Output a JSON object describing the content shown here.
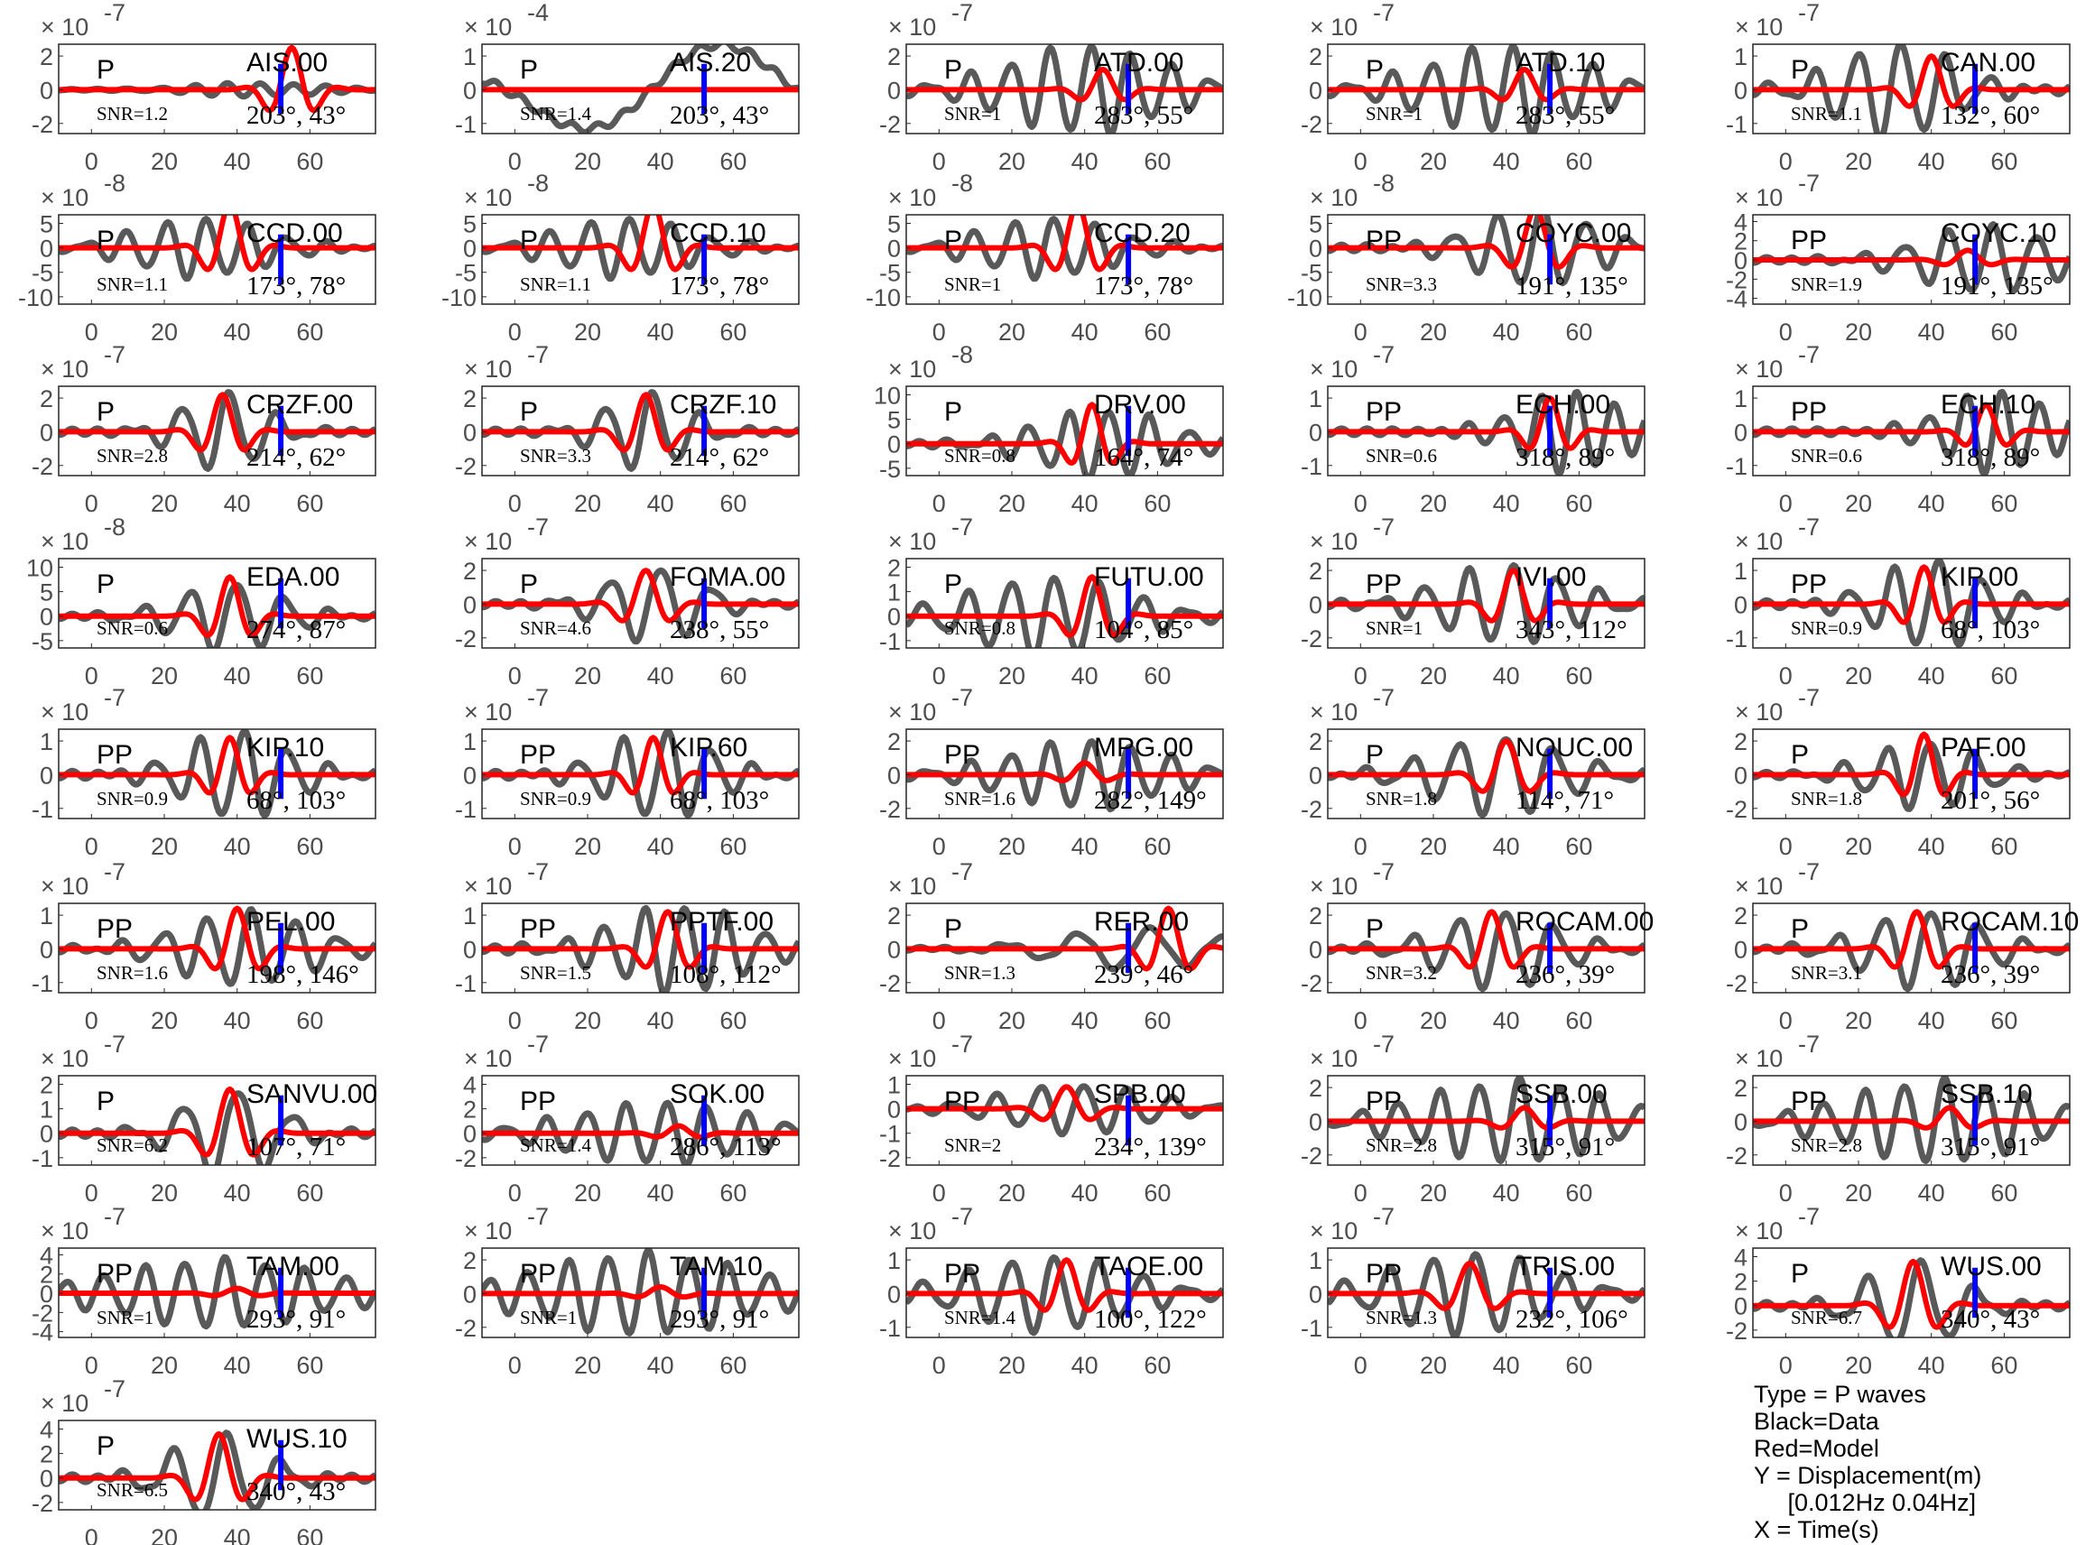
{
  "chart_data": {
    "type": "line",
    "xlabel": "Time(s)",
    "ylabel": "Displacement(m)",
    "xlim": [
      -9,
      78
    ],
    "xticks": [
      0,
      20,
      40,
      60
    ],
    "marker_time": 52,
    "colors": {
      "data": "#595959",
      "model": "#ff0000",
      "marker": "#0000ff",
      "axis": "#262626"
    },
    "legend": [
      "Type = P waves",
      "Black=Data",
      "Red=Model",
      "Y = Displacement(m)",
      "     [0.012Hz 0.04Hz]",
      "X = Time(s)"
    ],
    "plots": [
      {
        "station": "AIS.00",
        "phase": "P",
        "snr": "SNR=1.2",
        "angles": "203°, 43°",
        "exp": "-7",
        "yticks": [
          -2,
          0,
          2
        ],
        "model": [
          55,
          2.5,
          14
        ],
        "data": [
          45,
          0.4,
          9,
          25
        ]
      },
      {
        "station": "AIS.20",
        "phase": "P",
        "snr": "SNR=1.4",
        "angles": "203°, 43°",
        "exp": "-4",
        "yticks": [
          -1,
          0,
          1
        ],
        "model": [
          50,
          0.0,
          14
        ],
        "data": [
          45,
          1.4,
          80,
          60
        ]
      },
      {
        "station": "ATD.00",
        "phase": "P",
        "snr": "SNR=1",
        "angles": "283°, 55°",
        "exp": "-7",
        "yticks": [
          -2,
          0,
          2
        ],
        "model": [
          45,
          1.2,
          14
        ],
        "data": [
          40,
          2.6,
          11,
          30
        ]
      },
      {
        "station": "ATD.10",
        "phase": "P",
        "snr": "SNR=1",
        "angles": "283°, 55°",
        "exp": "-7",
        "yticks": [
          -2,
          0,
          2
        ],
        "model": [
          45,
          1.2,
          14
        ],
        "data": [
          40,
          2.6,
          11,
          30
        ]
      },
      {
        "station": "CAN.00",
        "phase": "P",
        "snr": "SNR=1.1",
        "angles": "132°, 60°",
        "exp": "-7",
        "yticks": [
          -1,
          0,
          1
        ],
        "model": [
          40,
          1.0,
          14
        ],
        "data": [
          30,
          1.4,
          12,
          22
        ]
      },
      {
        "station": "CCD.00",
        "phase": "P",
        "snr": "SNR=1.1",
        "angles": "173°, 78°",
        "exp": "-8",
        "yticks": [
          -10,
          -5,
          0,
          5
        ],
        "model": [
          38,
          9,
          14
        ],
        "data": [
          30,
          6,
          11,
          25
        ]
      },
      {
        "station": "CCD.10",
        "phase": "P",
        "snr": "SNR=1.1",
        "angles": "173°, 78°",
        "exp": "-8",
        "yticks": [
          -10,
          -5,
          0,
          5
        ],
        "model": [
          38,
          9,
          14
        ],
        "data": [
          30,
          6,
          11,
          25
        ]
      },
      {
        "station": "CCD.20",
        "phase": "P",
        "snr": "SNR=1",
        "angles": "173°, 78°",
        "exp": "-8",
        "yticks": [
          -10,
          -5,
          0,
          5
        ],
        "model": [
          38,
          9,
          14
        ],
        "data": [
          30,
          6,
          11,
          25
        ]
      },
      {
        "station": "COYC.00",
        "phase": "PP",
        "snr": "SNR=3.3",
        "angles": "191°, 135°",
        "exp": "-8",
        "yticks": [
          -10,
          -5,
          0,
          5
        ],
        "model": [
          48,
          8,
          15
        ],
        "data": [
          48,
          8,
          12,
          22
        ]
      },
      {
        "station": "COYC.10",
        "phase": "PP",
        "snr": "SNR=1.9",
        "angles": "191°, 135°",
        "exp": "-7",
        "yticks": [
          -4,
          -2,
          0,
          2,
          4
        ],
        "model": [
          50,
          1,
          15
        ],
        "data": [
          55,
          3.5,
          12,
          25
        ]
      },
      {
        "station": "CRZF.00",
        "phase": "P",
        "snr": "SNR=2.8",
        "angles": "214°, 62°",
        "exp": "-7",
        "yticks": [
          -2,
          0,
          2
        ],
        "model": [
          36,
          2.2,
          14
        ],
        "data": [
          36,
          2.3,
          13,
          16
        ]
      },
      {
        "station": "CRZF.10",
        "phase": "P",
        "snr": "SNR=3.3",
        "angles": "214°, 62°",
        "exp": "-7",
        "yticks": [
          -2,
          0,
          2
        ],
        "model": [
          36,
          2.2,
          14
        ],
        "data": [
          36,
          2.3,
          13,
          16
        ]
      },
      {
        "station": "DRV.00",
        "phase": "P",
        "snr": "SNR=0.8",
        "angles": "164°, 74°",
        "exp": "-8",
        "yticks": [
          -5,
          0,
          5,
          10
        ],
        "model": [
          42,
          8,
          13
        ],
        "data": [
          45,
          7,
          11,
          25
        ]
      },
      {
        "station": "ECH.00",
        "phase": "PP",
        "snr": "SNR=0.6",
        "angles": "318°, 89°",
        "exp": "-7",
        "yticks": [
          -1,
          0,
          1
        ],
        "model": [
          52,
          1,
          13
        ],
        "data": [
          58,
          1.2,
          10,
          20
        ]
      },
      {
        "station": "ECH.10",
        "phase": "PP",
        "snr": "SNR=0.6",
        "angles": "318°, 89°",
        "exp": "-7",
        "yticks": [
          -1,
          0,
          1
        ],
        "model": [
          55,
          0.8,
          13
        ],
        "data": [
          58,
          1.2,
          10,
          20
        ]
      },
      {
        "station": "EDA.00",
        "phase": "P",
        "snr": "SNR=0.6",
        "angles": "274°, 87°",
        "exp": "-8",
        "yticks": [
          -5,
          0,
          5,
          10
        ],
        "model": [
          38,
          8,
          14
        ],
        "data": [
          38,
          7,
          13,
          20
        ]
      },
      {
        "station": "FOMA.00",
        "phase": "P",
        "snr": "SNR=4.6",
        "angles": "238°, 55°",
        "exp": "-7",
        "yticks": [
          -2,
          0,
          2
        ],
        "model": [
          36,
          2,
          15
        ],
        "data": [
          38,
          2.2,
          14,
          18
        ]
      },
      {
        "station": "FUTU.00",
        "phase": "P",
        "snr": "SNR=0.8",
        "angles": "104°, 85°",
        "exp": "-7",
        "yticks": [
          -1,
          0,
          1,
          2
        ],
        "model": [
          42,
          1.6,
          14
        ],
        "data": [
          30,
          1.6,
          12,
          30
        ]
      },
      {
        "station": "IVI.00",
        "phase": "PP",
        "snr": "SNR=1",
        "angles": "343°, 112°",
        "exp": "-7",
        "yticks": [
          -2,
          0,
          2
        ],
        "model": [
          42,
          2,
          14
        ],
        "data": [
          40,
          2.3,
          12,
          25
        ]
      },
      {
        "station": "KIP.00",
        "phase": "PP",
        "snr": "SNR=0.9",
        "angles": "68°, 103°",
        "exp": "-7",
        "yticks": [
          -1,
          0,
          1
        ],
        "model": [
          38,
          1.1,
          13
        ],
        "data": [
          40,
          1.3,
          12,
          20
        ]
      },
      {
        "station": "KIP.10",
        "phase": "PP",
        "snr": "SNR=0.9",
        "angles": "68°, 103°",
        "exp": "-7",
        "yticks": [
          -1,
          0,
          1
        ],
        "model": [
          38,
          1.1,
          13
        ],
        "data": [
          40,
          1.3,
          12,
          20
        ]
      },
      {
        "station": "KIP.60",
        "phase": "PP",
        "snr": "SNR=0.9",
        "angles": "68°, 103°",
        "exp": "-7",
        "yticks": [
          -1,
          0,
          1
        ],
        "model": [
          38,
          1.1,
          13
        ],
        "data": [
          40,
          1.3,
          12,
          20
        ]
      },
      {
        "station": "MPG.00",
        "phase": "PP",
        "snr": "SNR=1.6",
        "angles": "282°, 149°",
        "exp": "-7",
        "yticks": [
          -2,
          0,
          2
        ],
        "model": [
          40,
          0.7,
          14
        ],
        "data": [
          40,
          2,
          11,
          30
        ]
      },
      {
        "station": "NOUC.00",
        "phase": "P",
        "snr": "SNR=1.8",
        "angles": "114°, 71°",
        "exp": "-7",
        "yticks": [
          -2,
          0,
          2
        ],
        "model": [
          40,
          2,
          15
        ],
        "data": [
          38,
          2.3,
          13,
          25
        ]
      },
      {
        "station": "PAF.00",
        "phase": "P",
        "snr": "SNR=1.8",
        "angles": "201°, 56°",
        "exp": "-7",
        "yticks": [
          -2,
          0,
          2
        ],
        "model": [
          38,
          2.4,
          13
        ],
        "data": [
          38,
          2,
          12,
          20
        ]
      },
      {
        "station": "PEL.00",
        "phase": "PP",
        "snr": "SNR=1.6",
        "angles": "198°, 146°",
        "exp": "-7",
        "yticks": [
          -1,
          0,
          1
        ],
        "model": [
          40,
          1.2,
          14
        ],
        "data": [
          42,
          1.1,
          12,
          25
        ]
      },
      {
        "station": "PPTF.00",
        "phase": "PP",
        "snr": "SNR=1.5",
        "angles": "108°, 112°",
        "exp": "-7",
        "yticks": [
          -1,
          0,
          1
        ],
        "model": [
          42,
          1.1,
          14
        ],
        "data": [
          45,
          1.3,
          11,
          25
        ]
      },
      {
        "station": "RER.00",
        "phase": "P",
        "snr": "SNR=1.3",
        "angles": "239°, 46°",
        "exp": "-7",
        "yticks": [
          -2,
          0,
          2
        ],
        "model": [
          63,
          2.4,
          14
        ],
        "data": [
          55,
          1.2,
          20,
          30
        ]
      },
      {
        "station": "ROCAM.00",
        "phase": "P",
        "snr": "SNR=3.2",
        "angles": "236°, 39°",
        "exp": "-7",
        "yticks": [
          -2,
          0,
          2
        ],
        "model": [
          36,
          2.2,
          14
        ],
        "data": [
          38,
          2.3,
          13,
          22
        ]
      },
      {
        "station": "ROCAM.10",
        "phase": "P",
        "snr": "SNR=3.1",
        "angles": "236°, 39°",
        "exp": "-7",
        "yticks": [
          -2,
          0,
          2
        ],
        "model": [
          36,
          2.2,
          14
        ],
        "data": [
          38,
          2.3,
          13,
          22
        ]
      },
      {
        "station": "SANVU.00",
        "phase": "P",
        "snr": "SNR=6.2",
        "angles": "107°, 71°",
        "exp": "-7",
        "yticks": [
          -1,
          0,
          1,
          2
        ],
        "model": [
          38,
          1.8,
          15
        ],
        "data": [
          38,
          1.8,
          15,
          18
        ]
      },
      {
        "station": "SOK.00",
        "phase": "PP",
        "snr": "SNR=1.4",
        "angles": "286°, 113°",
        "exp": "-7",
        "yticks": [
          -2,
          0,
          2,
          4
        ],
        "model": [
          45,
          0.6,
          14
        ],
        "data": [
          40,
          2.5,
          11,
          35
        ]
      },
      {
        "station": "SPB.00",
        "phase": "PP",
        "snr": "SNR=2",
        "angles": "234°, 139°",
        "exp": "-7",
        "yticks": [
          -2,
          -1,
          0,
          1
        ],
        "model": [
          35,
          0.9,
          15
        ],
        "data": [
          38,
          1,
          12,
          28
        ]
      },
      {
        "station": "SSB.00",
        "phase": "PP",
        "snr": "SNR=2.8",
        "angles": "315°, 91°",
        "exp": "-7",
        "yticks": [
          -2,
          0,
          2
        ],
        "model": [
          45,
          0.8,
          15
        ],
        "data": [
          42,
          2.4,
          11,
          35
        ]
      },
      {
        "station": "SSB.10",
        "phase": "PP",
        "snr": "SNR=2.8",
        "angles": "315°, 91°",
        "exp": "-7",
        "yticks": [
          -2,
          0,
          2
        ],
        "model": [
          45,
          0.8,
          15
        ],
        "data": [
          42,
          2.4,
          11,
          35
        ]
      },
      {
        "station": "TAM.00",
        "phase": "PP",
        "snr": "SNR=1",
        "angles": "293°, 91°",
        "exp": "-7",
        "yticks": [
          -4,
          -2,
          0,
          2,
          4
        ],
        "model": [
          40,
          0.5,
          15
        ],
        "data": [
          35,
          3.5,
          11,
          40
        ]
      },
      {
        "station": "TAM.10",
        "phase": "PP",
        "snr": "SNR=1",
        "angles": "293°, 91°",
        "exp": "-7",
        "yticks": [
          -2,
          0,
          2
        ],
        "model": [
          40,
          0.4,
          15
        ],
        "data": [
          35,
          2.4,
          11,
          40
        ]
      },
      {
        "station": "TAOE.00",
        "phase": "PP",
        "snr": "SNR=1.4",
        "angles": "100°, 122°",
        "exp": "-7",
        "yticks": [
          -1,
          0,
          1
        ],
        "model": [
          35,
          1,
          14
        ],
        "data": [
          30,
          1.1,
          12,
          30
        ]
      },
      {
        "station": "TRIS.00",
        "phase": "PP",
        "snr": "SNR=1.3",
        "angles": "232°, 106°",
        "exp": "-7",
        "yticks": [
          -1,
          0,
          1
        ],
        "model": [
          30,
          0.9,
          16
        ],
        "data": [
          30,
          1.2,
          12,
          30
        ]
      },
      {
        "station": "WUS.00",
        "phase": "P",
        "snr": "SNR=6.7",
        "angles": "340°, 43°",
        "exp": "-7",
        "yticks": [
          -2,
          0,
          2,
          4
        ],
        "model": [
          35,
          3.6,
          15
        ],
        "data": [
          35,
          3.5,
          15,
          18
        ]
      },
      {
        "station": "WUS.10",
        "phase": "P",
        "snr": "SNR=6.5",
        "angles": "340°, 43°",
        "exp": "-7",
        "yticks": [
          -2,
          0,
          2,
          4
        ],
        "model": [
          35,
          3.6,
          15
        ],
        "data": [
          35,
          3.5,
          15,
          18
        ]
      }
    ]
  }
}
